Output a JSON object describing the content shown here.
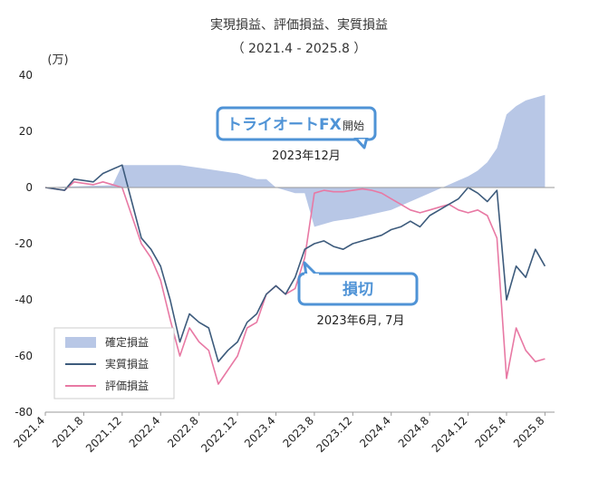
{
  "chart_data": {
    "type": "line",
    "title": "実現損益、評価損益、実質損益",
    "subtitle": "（ 2021.4 - 2025.8 ）",
    "yunit": "(万)",
    "ylim": [
      -80,
      40
    ],
    "yticks": [
      40,
      20,
      0,
      -20,
      -40,
      -60,
      -80
    ],
    "xlim": [
      "2021-04",
      "2025-09"
    ],
    "xticks": [
      "2021.4",
      "2021.8",
      "2021.12",
      "2022.4",
      "2022.8",
      "2022.12",
      "2023.4",
      "2023.8",
      "2023.12",
      "2024.4",
      "2024.8",
      "2024.12",
      "2025.4",
      "2025.8"
    ],
    "grid": false,
    "legend_position": "bottom-left",
    "colors": {
      "area": "#b8c7e6",
      "real": "#3d5b7c",
      "eval": "#e879a4",
      "callout": "#4f93d6"
    },
    "series": [
      {
        "name": "確定損益",
        "type": "area",
        "x": [
          "2021-04",
          "2021-06",
          "2021-09",
          "2021-11",
          "2021-12",
          "2022-02",
          "2022-06",
          "2022-08",
          "2022-10",
          "2022-12",
          "2023-02",
          "2023-03",
          "2023-04",
          "2023-06",
          "2023-07",
          "2023-08",
          "2023-10",
          "2023-12",
          "2024-02",
          "2024-04",
          "2024-06",
          "2024-08",
          "2024-10",
          "2024-12",
          "2025-01",
          "2025-02",
          "2025-03",
          "2025-04",
          "2025-05",
          "2025-06",
          "2025-07",
          "2025-08"
        ],
        "values": [
          0,
          0.3,
          0.6,
          0.8,
          8,
          8,
          8,
          7,
          6,
          5,
          3,
          3,
          0,
          -2,
          -2,
          -14,
          -12,
          -11,
          -9.5,
          -8,
          -5,
          -2,
          1,
          4,
          6,
          9,
          14,
          26,
          29,
          31,
          32,
          33
        ]
      },
      {
        "name": "実質損益",
        "type": "line",
        "x": [
          "2021-04",
          "2021-06",
          "2021-07",
          "2021-09",
          "2021-10",
          "2021-12",
          "2022-01",
          "2022-02",
          "2022-03",
          "2022-04",
          "2022-05",
          "2022-06",
          "2022-07",
          "2022-08",
          "2022-09",
          "2022-10",
          "2022-11",
          "2022-12",
          "2023-01",
          "2023-02",
          "2023-03",
          "2023-04",
          "2023-05",
          "2023-06",
          "2023-07",
          "2023-08",
          "2023-09",
          "2023-10",
          "2023-11",
          "2023-12",
          "2024-01",
          "2024-02",
          "2024-03",
          "2024-04",
          "2024-05",
          "2024-06",
          "2024-07",
          "2024-08",
          "2024-09",
          "2024-10",
          "2024-11",
          "2024-12",
          "2025-01",
          "2025-02",
          "2025-03",
          "2025-04",
          "2025-05",
          "2025-06",
          "2025-07",
          "2025-08"
        ],
        "values": [
          0,
          -1,
          3,
          2,
          5,
          8,
          -5,
          -18,
          -22,
          -28,
          -40,
          -55,
          -45,
          -48,
          -50,
          -62,
          -58,
          -55,
          -48,
          -45,
          -38,
          -35,
          -38,
          -32,
          -22,
          -20,
          -19,
          -21,
          -22,
          -20,
          -19,
          -18,
          -17,
          -15,
          -14,
          -12,
          -14,
          -10,
          -8,
          -6,
          -4,
          0,
          -2,
          -5,
          -1,
          -40,
          -28,
          -32,
          -22,
          -28
        ]
      },
      {
        "name": "評価損益",
        "type": "line",
        "x": [
          "2021-04",
          "2021-06",
          "2021-07",
          "2021-09",
          "2021-10",
          "2021-12",
          "2022-01",
          "2022-02",
          "2022-03",
          "2022-04",
          "2022-05",
          "2022-06",
          "2022-07",
          "2022-08",
          "2022-09",
          "2022-10",
          "2022-11",
          "2022-12",
          "2023-01",
          "2023-02",
          "2023-03",
          "2023-04",
          "2023-05",
          "2023-06",
          "2023-07",
          "2023-08",
          "2023-09",
          "2023-10",
          "2023-11",
          "2023-12",
          "2024-01",
          "2024-02",
          "2024-03",
          "2024-04",
          "2024-05",
          "2024-06",
          "2024-07",
          "2024-08",
          "2024-09",
          "2024-10",
          "2024-11",
          "2024-12",
          "2025-01",
          "2025-02",
          "2025-03",
          "2025-04",
          "2025-05",
          "2025-06",
          "2025-07",
          "2025-08"
        ],
        "values": [
          0,
          -1,
          2,
          1,
          2,
          0,
          -10,
          -20,
          -25,
          -33,
          -47,
          -60,
          -50,
          -55,
          -58,
          -70,
          -65,
          -60,
          -50,
          -48,
          -38,
          -35,
          -38,
          -36,
          -25,
          -2,
          -1,
          -1.5,
          -1.5,
          -1,
          -0.5,
          -1,
          -2,
          -4,
          -6,
          -8,
          -9,
          -8,
          -7,
          -6,
          -8,
          -9,
          -8,
          -10,
          -18,
          -68,
          -50,
          -58,
          -62,
          -61
        ]
      }
    ],
    "annotations": [
      {
        "label": "トライオートFX",
        "suffix": "開始",
        "date_text": "2023年12月",
        "x": "2023-12",
        "y": 0
      },
      {
        "label": "損切",
        "suffix": "",
        "date_text": "2023年6月, 7月",
        "x": "2023-07",
        "y": -23
      }
    ]
  }
}
